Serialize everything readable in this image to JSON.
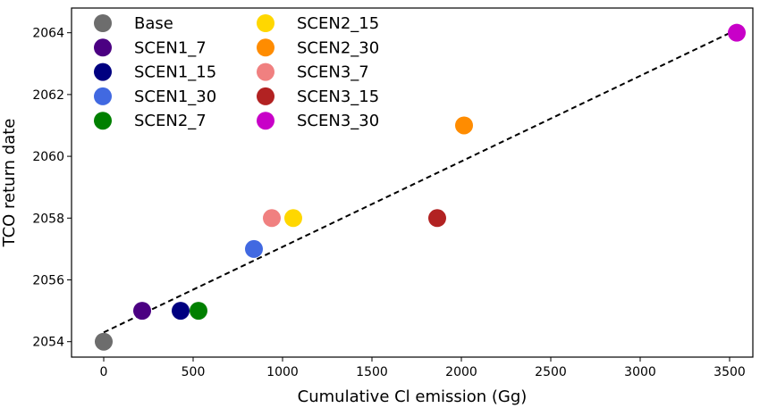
{
  "chart_data": {
    "type": "scatter",
    "xlabel": "Cumulative Cl emission (Gg)",
    "ylabel": "TCO return date",
    "xlim": [
      -180,
      3630
    ],
    "ylim": [
      2053.5,
      2064.8
    ],
    "xticks": [
      0,
      500,
      1000,
      1500,
      2000,
      2500,
      3000,
      3500
    ],
    "yticks": [
      2054,
      2056,
      2058,
      2060,
      2062,
      2064
    ],
    "grid": false,
    "legend_placement": "top-left",
    "legend_columns": 2,
    "trendline": {
      "style": "dashed",
      "color": "#000000",
      "x": [
        0,
        3540
      ],
      "y": [
        2054.3,
        2064.1
      ]
    },
    "series": [
      {
        "name": "Base",
        "color": "#6d6d6d",
        "x": 0,
        "y": 2054
      },
      {
        "name": "SCEN1_7",
        "color": "#4b0082",
        "x": 215,
        "y": 2055
      },
      {
        "name": "SCEN1_15",
        "color": "#000080",
        "x": 430,
        "y": 2055
      },
      {
        "name": "SCEN1_30",
        "color": "#4169e1",
        "x": 840,
        "y": 2057
      },
      {
        "name": "SCEN2_7",
        "color": "#008000",
        "x": 530,
        "y": 2055
      },
      {
        "name": "SCEN2_15",
        "color": "#ffd700",
        "x": 1060,
        "y": 2058
      },
      {
        "name": "SCEN2_30",
        "color": "#ff8c00",
        "x": 2015,
        "y": 2061
      },
      {
        "name": "SCEN3_7",
        "color": "#f08080",
        "x": 940,
        "y": 2058
      },
      {
        "name": "SCEN3_15",
        "color": "#b22222",
        "x": 1865,
        "y": 2058
      },
      {
        "name": "SCEN3_30",
        "color": "#c800c8",
        "x": 3540,
        "y": 2064
      }
    ]
  }
}
